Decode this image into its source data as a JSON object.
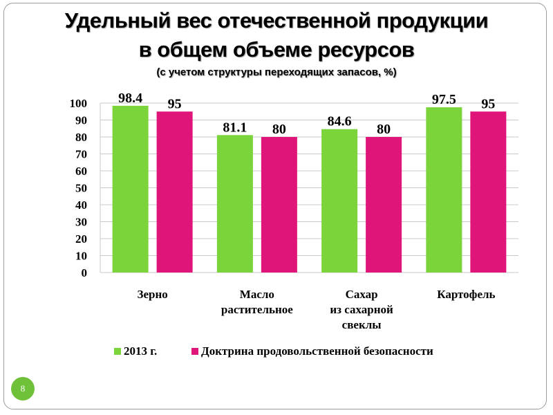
{
  "slide": {
    "title_line1": "Удельный вес отечественной продукции",
    "title_line2": "в общем объеме ресурсов",
    "subtitle": "(с учетом структуры переходящих запасов, %)",
    "slide_number": "8"
  },
  "chart_data": {
    "type": "bar",
    "categories": [
      [
        "Зерно"
      ],
      [
        "Масло",
        "растительное"
      ],
      [
        "Сахар",
        "из сахарной",
        "свеклы"
      ],
      [
        "Картофель"
      ]
    ],
    "series": [
      {
        "name": "2013 г.",
        "color": "#7ad43a",
        "values": [
          98.4,
          81.1,
          84.6,
          97.5
        ],
        "labels": [
          "98.4",
          "81.1",
          "84.6",
          "97.5"
        ]
      },
      {
        "name": "Доктрина продовольственной безопасности",
        "color": "#e0157a",
        "values": [
          95,
          80,
          80,
          95
        ],
        "labels": [
          "95",
          "80",
          "80",
          "95"
        ]
      }
    ],
    "ylim": [
      0,
      100
    ],
    "yticks": [
      "0",
      "10",
      "20",
      "30",
      "40",
      "50",
      "60",
      "70",
      "80",
      "90",
      "100"
    ],
    "grid": true,
    "legend_position": "bottom"
  }
}
